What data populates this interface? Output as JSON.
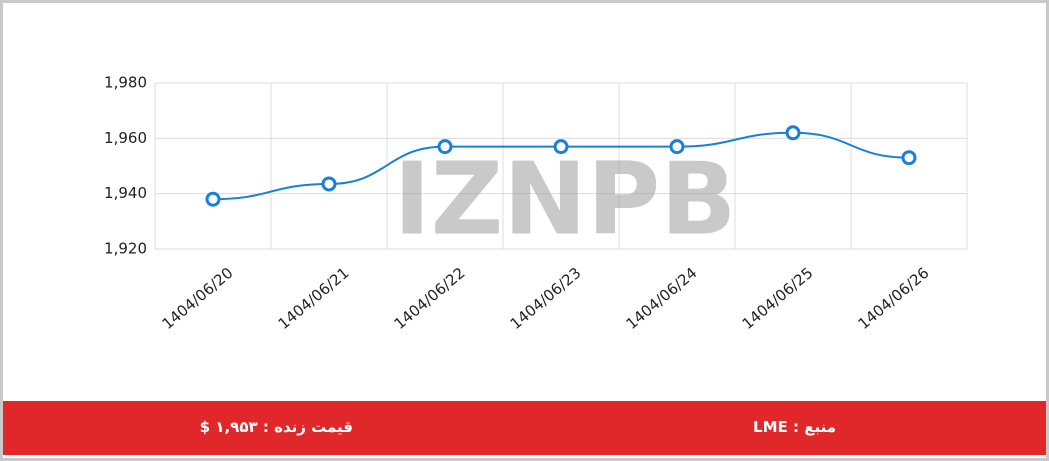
{
  "chart_data": {
    "type": "line",
    "watermark": "IZNPB",
    "categories": [
      "1404/06/20",
      "1404/06/21",
      "1404/06/22",
      "1404/06/23",
      "1404/06/24",
      "1404/06/25",
      "1404/06/26"
    ],
    "values": [
      1938,
      1943.5,
      1957,
      1957,
      1957,
      1962,
      1953
    ],
    "color": "#1a7fd6",
    "ylim": [
      1920,
      1980
    ],
    "yticks": [
      {
        "value": 1920,
        "label": "1,920"
      },
      {
        "value": 1940,
        "label": "1,940"
      },
      {
        "value": 1960,
        "label": "1,960"
      },
      {
        "value": 1980,
        "label": "1,980"
      }
    ],
    "grid": true
  },
  "footer": {
    "price": "قیمت زنده : ۱,۹۵۳ $",
    "source": "منبع : LME"
  }
}
